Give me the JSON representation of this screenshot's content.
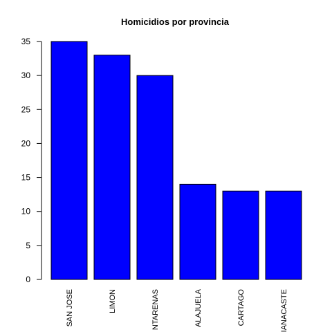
{
  "chart_data": {
    "type": "bar",
    "title": "Homicidios por provincia",
    "xlabel": "",
    "ylabel": "",
    "categories": [
      "SAN JOSE",
      "LIMON",
      "NTARENAS",
      "ALAJUELA",
      "CARTAGO",
      "IANACASTE"
    ],
    "values": [
      35,
      33,
      30,
      14,
      13,
      13
    ],
    "ylim": [
      0,
      35
    ],
    "yticks": [
      0,
      5,
      10,
      15,
      20,
      25,
      30,
      35
    ],
    "bar_color": "#0000ff",
    "grid": false,
    "legend": "none"
  }
}
